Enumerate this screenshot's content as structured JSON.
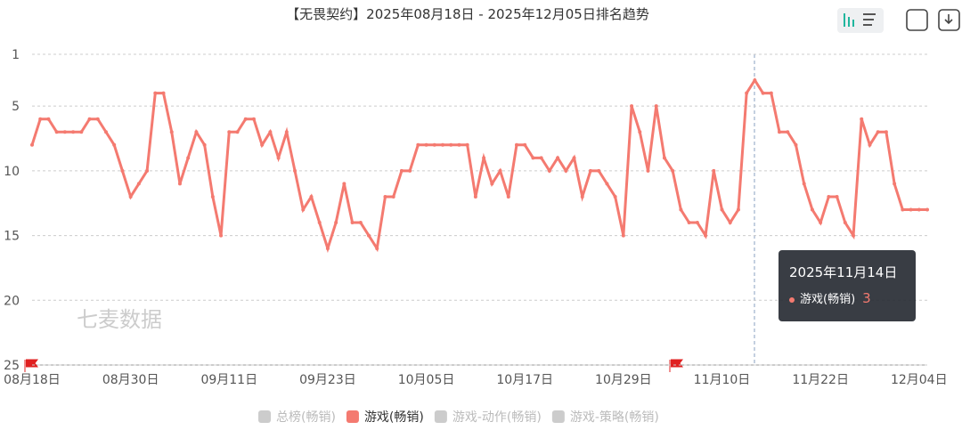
{
  "chart_data": {
    "type": "line",
    "title": "【无畏契约】2025年08月18日 - 2025年12月05日排名趋势",
    "watermark": "七麦数据",
    "categories": [
      "08月18日",
      null,
      null,
      null,
      null,
      null,
      null,
      null,
      null,
      null,
      null,
      null,
      "08月30日",
      null,
      null,
      null,
      null,
      null,
      null,
      null,
      null,
      null,
      null,
      null,
      "09月11日",
      null,
      null,
      null,
      null,
      null,
      null,
      null,
      null,
      null,
      null,
      null,
      "09月23日",
      null,
      null,
      null,
      null,
      null,
      null,
      null,
      null,
      null,
      null,
      null,
      "10月05日",
      null,
      null,
      null,
      null,
      null,
      null,
      null,
      null,
      null,
      null,
      null,
      "10月17日",
      null,
      null,
      null,
      null,
      null,
      null,
      null,
      null,
      null,
      null,
      null,
      "10月29日",
      null,
      null,
      null,
      null,
      null,
      null,
      null,
      null,
      null,
      null,
      null,
      "11月10日",
      null,
      null,
      null,
      null,
      null,
      null,
      null,
      null,
      null,
      null,
      null,
      "11月22日",
      null,
      null,
      null,
      null,
      null,
      null,
      null,
      null,
      null,
      null,
      null,
      "12月04日",
      null
    ],
    "series": [
      {
        "name": "游戏(畅销)",
        "color": "#f47a70",
        "values": [
          8,
          6,
          6,
          7,
          7,
          7,
          7,
          6,
          6,
          7,
          8,
          10,
          12,
          11,
          10,
          4,
          4,
          7,
          11,
          9,
          7,
          8,
          12,
          15,
          7,
          7,
          6,
          6,
          8,
          7,
          9,
          7,
          10,
          13,
          12,
          14,
          16,
          14,
          11,
          14,
          14,
          15,
          16,
          12,
          12,
          10,
          10,
          8,
          8,
          8,
          8,
          8,
          8,
          8,
          12,
          9,
          11,
          10,
          12,
          8,
          8,
          9,
          9,
          10,
          9,
          10,
          9,
          12,
          10,
          10,
          11,
          12,
          15,
          5,
          7,
          10,
          5,
          9,
          10,
          13,
          14,
          14,
          15,
          10,
          13,
          14,
          13,
          4,
          3,
          4,
          4,
          7,
          7,
          8,
          11,
          13,
          14,
          12,
          12,
          14,
          15,
          6,
          8,
          7,
          7,
          11,
          13,
          13,
          13,
          13
        ]
      }
    ],
    "legend": [
      {
        "name": "总榜(畅销)",
        "color": "#cccccc"
      },
      {
        "name": "游戏(畅销)",
        "color": "#f47a70"
      },
      {
        "name": "游戏-动作(畅销)",
        "color": "#cccccc"
      },
      {
        "name": "游戏-策略(畅销)",
        "color": "#cccccc"
      }
    ],
    "ylim": [
      1,
      25
    ],
    "y_inverted": true,
    "yticks": [
      1,
      5,
      10,
      15,
      20,
      25
    ],
    "grid": true,
    "tooltip": {
      "title": "2025年11月14日",
      "series": "游戏(畅销)",
      "value": 3
    }
  }
}
